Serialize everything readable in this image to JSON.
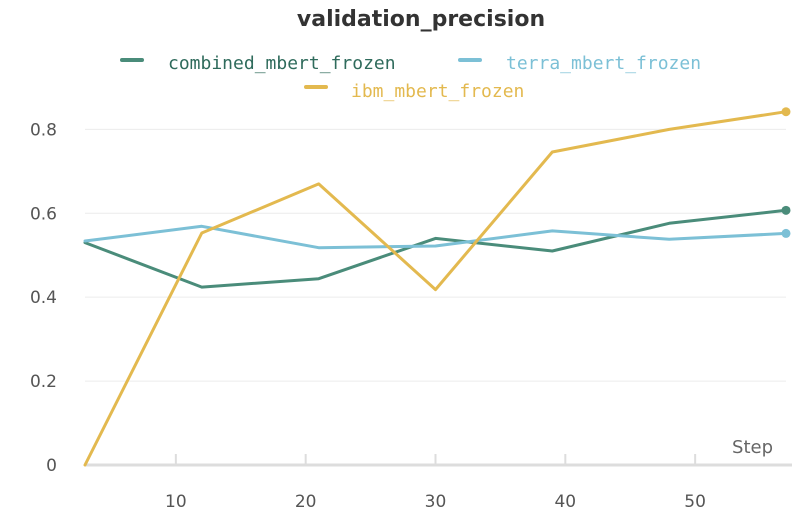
{
  "chart_data": {
    "type": "line",
    "title": "validation_precision",
    "xlabel": "Step",
    "ylabel": "",
    "xlim": [
      3,
      57
    ],
    "ylim": [
      0,
      0.87
    ],
    "x_ticks": [
      10,
      20,
      30,
      40,
      50
    ],
    "x_tick_labels": [
      "10",
      "20",
      "30",
      "40",
      "50"
    ],
    "y_ticks": [
      0,
      0.2,
      0.4,
      0.6,
      0.8
    ],
    "y_tick_labels": [
      "0",
      "0.2",
      "0.4",
      "0.6",
      "0.8"
    ],
    "grid": true,
    "legend_position": "top",
    "series": [
      {
        "name": "combined_mbert_frozen",
        "color": "#4a8c7a",
        "x": [
          3,
          12,
          21,
          30,
          39,
          48,
          57
        ],
        "values": [
          0.53,
          0.424,
          0.444,
          0.54,
          0.51,
          0.576,
          0.607
        ]
      },
      {
        "name": "terra_mbert_frozen",
        "color": "#7cc0d6",
        "x": [
          3,
          12,
          21,
          30,
          39,
          48,
          57
        ],
        "values": [
          0.534,
          0.569,
          0.518,
          0.522,
          0.558,
          0.538,
          0.552
        ]
      },
      {
        "name": "ibm_mbert_frozen",
        "color": "#e3b94f",
        "x": [
          3,
          12,
          21,
          30,
          39,
          48,
          57
        ],
        "values": [
          0.0,
          0.553,
          0.67,
          0.418,
          0.746,
          0.8,
          0.842
        ]
      }
    ]
  }
}
